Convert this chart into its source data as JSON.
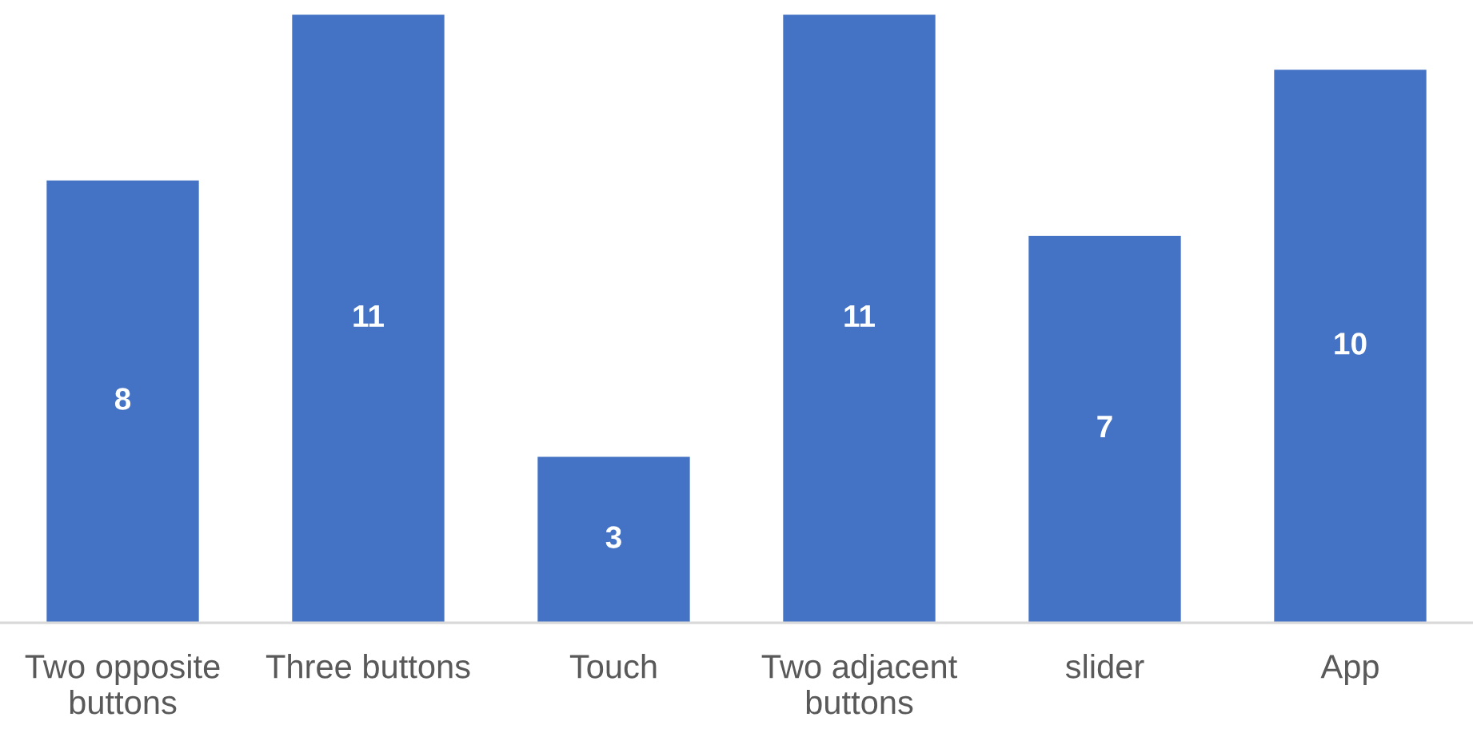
{
  "chart_data": {
    "type": "bar",
    "categories": [
      "Two opposite buttons",
      "Three buttons",
      "Touch",
      "Two adjacent buttons",
      "slider",
      "App"
    ],
    "values": [
      8,
      11,
      3,
      11,
      7,
      10
    ],
    "color": "#4472c4",
    "data_labels": true,
    "tick_labels": "x"
  }
}
